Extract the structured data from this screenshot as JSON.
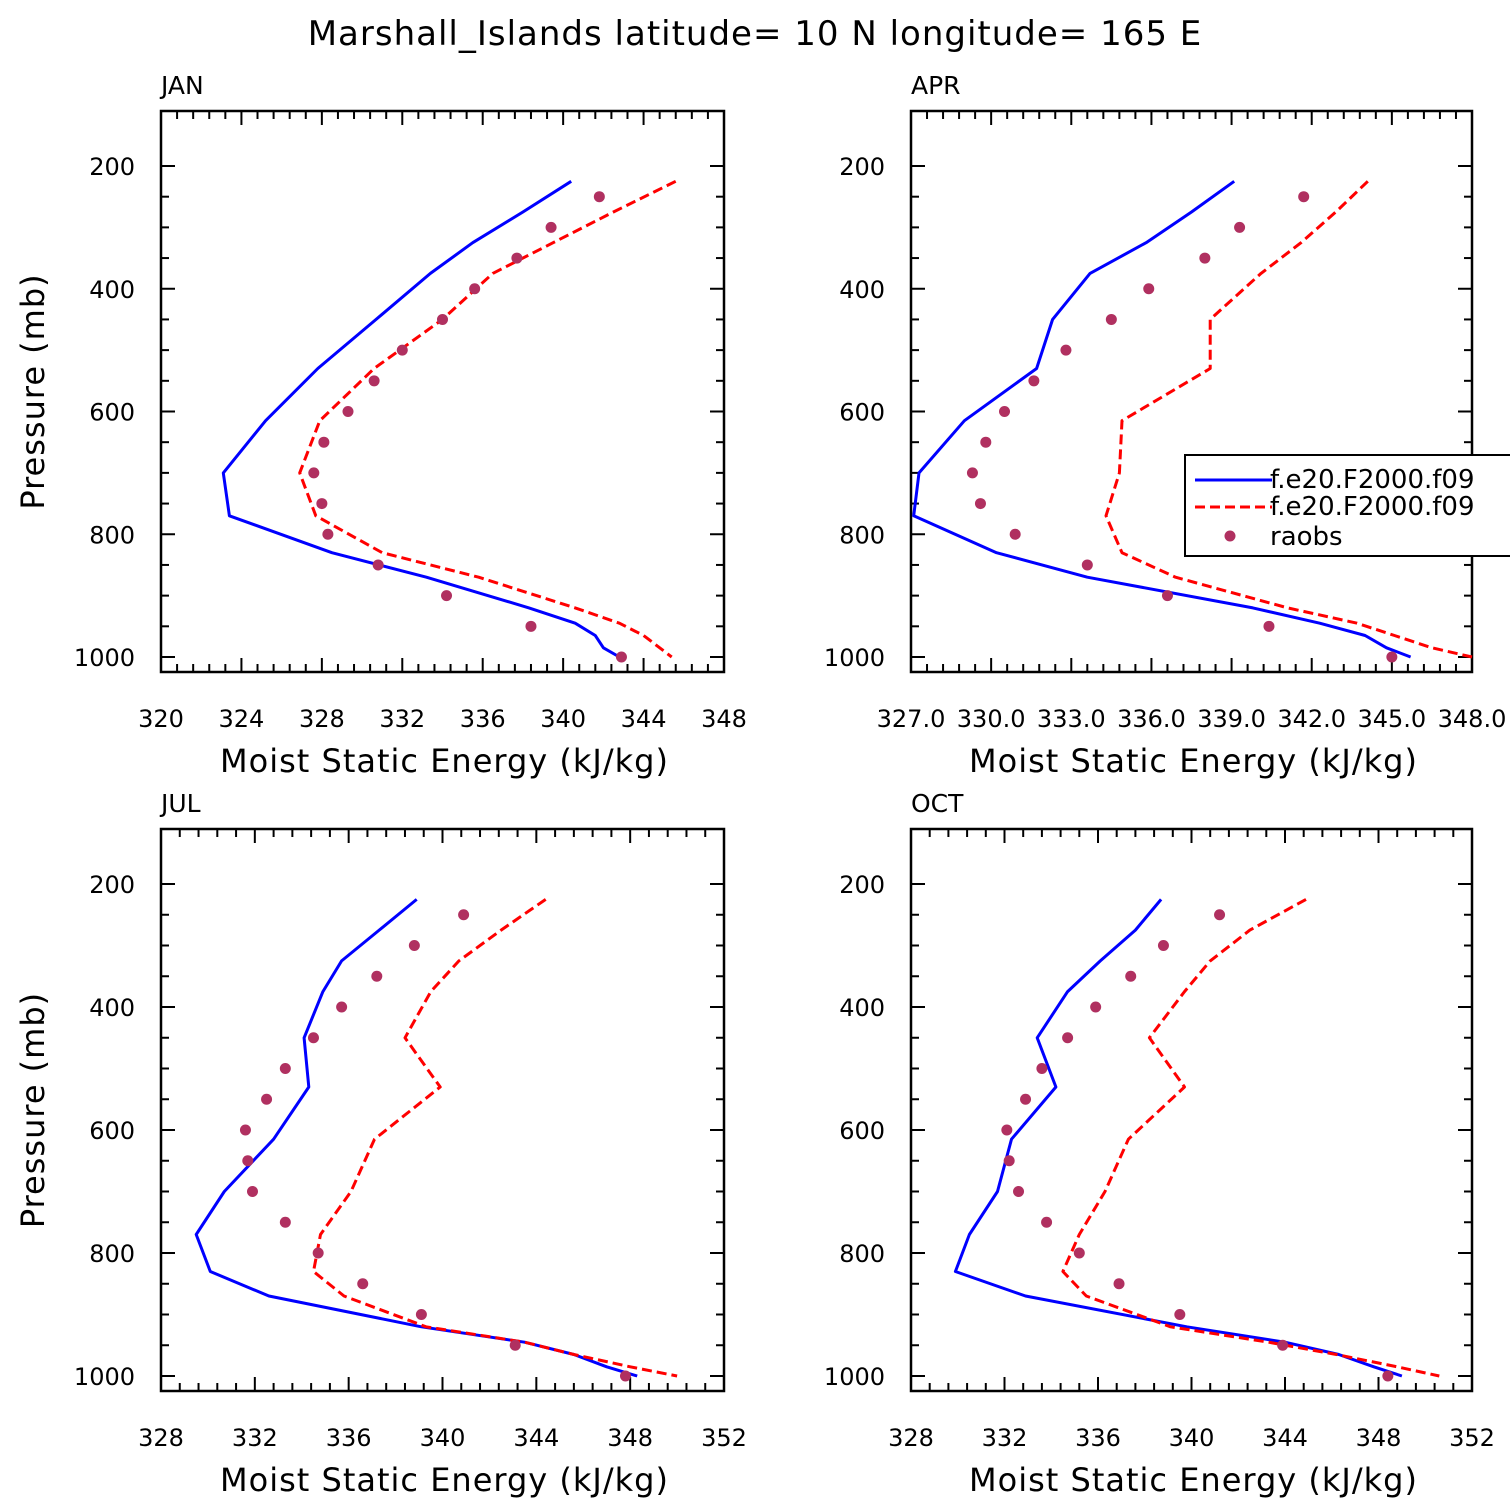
{
  "title": "Marshall_Islands   latitude= 10 N longitude= 165 E",
  "colors": {
    "model1": "#0000ff",
    "model2": "#ff0000",
    "raobs": "#b03060"
  },
  "legend": {
    "entries": [
      "f.e20.F2000.f09",
      "f.e20.F2000.f09",
      "raobs"
    ],
    "placement": "right, inside APR panel"
  },
  "chart_data": [
    {
      "type": "line",
      "panel": "JAN",
      "xlabel": "Moist Static Energy (kJ/kg)",
      "ylabel": "Pressure (mb)",
      "xlim": [
        320,
        348
      ],
      "xticks": [
        320,
        324,
        328,
        332,
        336,
        340,
        344,
        348
      ],
      "xtick_labels": [
        "320",
        "324",
        "328",
        "332",
        "336",
        "340",
        "344",
        "348"
      ],
      "ylim": [
        1000,
        200
      ],
      "yticks": [
        200,
        400,
        600,
        800,
        1000
      ],
      "ytick_labels": [
        "200",
        "400",
        "600",
        "800",
        "1000"
      ],
      "series": [
        {
          "name": "f.e20.F2000.f09",
          "style": "solid",
          "color": "#0000ff",
          "p": [
            225,
            275,
            325,
            375,
            450,
            530,
            615,
            700,
            770,
            830,
            870,
            920,
            945,
            965,
            985,
            1000
          ],
          "x": [
            340.4,
            338.0,
            335.5,
            333.4,
            330.7,
            327.8,
            325.2,
            323.1,
            323.4,
            328.5,
            333.2,
            338.3,
            340.6,
            341.6,
            342.0,
            342.8
          ]
        },
        {
          "name": "f.e20.F2000.f09",
          "style": "dashed",
          "color": "#ff0000",
          "p": [
            225,
            275,
            325,
            375,
            450,
            530,
            615,
            700,
            770,
            830,
            870,
            920,
            945,
            965,
            985,
            1000
          ],
          "x": [
            345.6,
            342.5,
            339.5,
            336.5,
            334.0,
            330.6,
            327.9,
            326.9,
            327.7,
            331.0,
            335.8,
            340.6,
            342.8,
            344.0,
            344.8,
            345.4
          ]
        },
        {
          "name": "raobs",
          "style": "markers",
          "color": "#b03060",
          "p": [
            250,
            300,
            350,
            400,
            450,
            500,
            550,
            600,
            650,
            700,
            750,
            800,
            850,
            900,
            950,
            1000
          ],
          "x": [
            341.8,
            339.4,
            337.7,
            335.6,
            334.0,
            332.0,
            330.6,
            329.3,
            328.1,
            327.6,
            328.0,
            328.3,
            330.8,
            334.2,
            338.4,
            342.9
          ]
        }
      ]
    },
    {
      "type": "line",
      "panel": "APR",
      "xlabel": "Moist Static Energy (kJ/kg)",
      "ylabel": "",
      "xlim": [
        327.0,
        348.0
      ],
      "xticks": [
        327,
        330,
        333,
        336,
        339,
        342,
        345,
        348
      ],
      "xtick_labels": [
        "327.0",
        "330.0",
        "333.0",
        "336.0",
        "339.0",
        "342.0",
        "345.0",
        "348.0"
      ],
      "ylim": [
        1000,
        200
      ],
      "yticks": [
        200,
        400,
        600,
        800,
        1000
      ],
      "ytick_labels": [
        "200",
        "400",
        "600",
        "800",
        "1000"
      ],
      "series": [
        {
          "name": "f.e20.F2000.f09",
          "style": "solid",
          "color": "#0000ff",
          "p": [
            225,
            275,
            325,
            375,
            450,
            530,
            615,
            700,
            770,
            830,
            870,
            920,
            945,
            965,
            985,
            1000
          ],
          "x": [
            339.1,
            337.5,
            335.8,
            333.7,
            332.3,
            331.7,
            329.0,
            327.3,
            327.1,
            330.2,
            333.6,
            339.8,
            342.3,
            344.0,
            344.8,
            345.7
          ]
        },
        {
          "name": "f.e20.F2000.f09",
          "style": "dashed",
          "color": "#ff0000",
          "p": [
            225,
            275,
            325,
            375,
            450,
            530,
            615,
            700,
            770,
            830,
            870,
            920,
            945,
            965,
            985,
            1000
          ],
          "x": [
            344.1,
            342.9,
            341.6,
            340.1,
            338.2,
            338.2,
            334.9,
            334.8,
            334.3,
            334.9,
            336.9,
            341.1,
            343.7,
            345.1,
            346.5,
            348.0
          ]
        },
        {
          "name": "raobs",
          "style": "markers",
          "color": "#b03060",
          "p": [
            250,
            300,
            350,
            400,
            450,
            500,
            550,
            600,
            650,
            700,
            750,
            800,
            850,
            900,
            950,
            1000
          ],
          "x": [
            341.7,
            339.3,
            338.0,
            335.9,
            334.5,
            332.8,
            331.6,
            330.5,
            329.8,
            329.3,
            329.6,
            330.9,
            333.6,
            336.6,
            340.4,
            345.0
          ]
        }
      ]
    },
    {
      "type": "line",
      "panel": "JUL",
      "xlabel": "Moist Static Energy (kJ/kg)",
      "ylabel": "Pressure (mb)",
      "xlim": [
        328,
        352
      ],
      "xticks": [
        328,
        332,
        336,
        340,
        344,
        348,
        352
      ],
      "xtick_labels": [
        "328",
        "332",
        "336",
        "340",
        "344",
        "348",
        "352"
      ],
      "ylim": [
        1000,
        200
      ],
      "yticks": [
        200,
        400,
        600,
        800,
        1000
      ],
      "ytick_labels": [
        "200",
        "400",
        "600",
        "800",
        "1000"
      ],
      "series": [
        {
          "name": "f.e20.F2000.f09",
          "style": "solid",
          "color": "#0000ff",
          "p": [
            225,
            275,
            325,
            375,
            450,
            530,
            615,
            700,
            770,
            830,
            870,
            920,
            945,
            965,
            985,
            1000
          ],
          "x": [
            338.9,
            337.3,
            335.7,
            334.9,
            334.1,
            334.3,
            332.8,
            330.7,
            329.5,
            330.1,
            332.6,
            339.1,
            343.5,
            345.6,
            347.0,
            348.3
          ]
        },
        {
          "name": "f.e20.F2000.f09",
          "style": "dashed",
          "color": "#ff0000",
          "p": [
            225,
            275,
            325,
            375,
            450,
            530,
            615,
            700,
            770,
            830,
            870,
            920,
            945,
            965,
            985,
            1000
          ],
          "x": [
            344.4,
            342.5,
            340.7,
            339.5,
            338.4,
            339.9,
            337.1,
            336.1,
            334.8,
            334.5,
            335.8,
            339.3,
            343.5,
            345.6,
            348.0,
            350.0
          ]
        },
        {
          "name": "raobs",
          "style": "markers",
          "color": "#b03060",
          "p": [
            250,
            300,
            350,
            400,
            450,
            500,
            550,
            600,
            650,
            700,
            750,
            800,
            850,
            900,
            950,
            1000
          ],
          "x": [
            340.9,
            338.8,
            337.2,
            335.7,
            334.5,
            333.3,
            332.5,
            331.6,
            331.7,
            331.9,
            333.3,
            334.7,
            336.6,
            339.1,
            343.1,
            347.8
          ]
        }
      ]
    },
    {
      "type": "line",
      "panel": "OCT",
      "xlabel": "Moist Static Energy (kJ/kg)",
      "ylabel": "",
      "xlim": [
        328,
        352
      ],
      "xticks": [
        328,
        332,
        336,
        340,
        344,
        348,
        352
      ],
      "xtick_labels": [
        "328",
        "332",
        "336",
        "340",
        "344",
        "348",
        "352"
      ],
      "ylim": [
        1000,
        200
      ],
      "yticks": [
        200,
        400,
        600,
        800,
        1000
      ],
      "ytick_labels": [
        "200",
        "400",
        "600",
        "800",
        "1000"
      ],
      "series": [
        {
          "name": "f.e20.F2000.f09",
          "style": "solid",
          "color": "#0000ff",
          "p": [
            225,
            275,
            325,
            375,
            450,
            530,
            615,
            700,
            770,
            830,
            870,
            920,
            945,
            965,
            985,
            1000
          ],
          "x": [
            338.7,
            337.6,
            336.1,
            334.7,
            333.4,
            334.2,
            332.3,
            331.7,
            330.5,
            329.9,
            332.9,
            339.8,
            344.0,
            346.3,
            347.8,
            349.0
          ]
        },
        {
          "name": "f.e20.F2000.f09",
          "style": "dashed",
          "color": "#ff0000",
          "p": [
            225,
            275,
            325,
            375,
            450,
            530,
            615,
            700,
            770,
            830,
            870,
            920,
            945,
            965,
            985,
            1000
          ],
          "x": [
            344.9,
            342.5,
            340.8,
            339.7,
            338.2,
            339.7,
            337.3,
            336.3,
            335.2,
            334.5,
            335.5,
            339.1,
            343.3,
            346.2,
            348.8,
            350.6
          ]
        },
        {
          "name": "raobs",
          "style": "markers",
          "color": "#b03060",
          "p": [
            250,
            300,
            350,
            400,
            450,
            500,
            550,
            600,
            650,
            700,
            750,
            800,
            850,
            900,
            950,
            1000
          ],
          "x": [
            341.2,
            338.8,
            337.4,
            335.9,
            334.7,
            333.6,
            332.9,
            332.1,
            332.2,
            332.6,
            333.8,
            335.2,
            336.9,
            339.5,
            343.9,
            348.4
          ]
        }
      ]
    }
  ]
}
